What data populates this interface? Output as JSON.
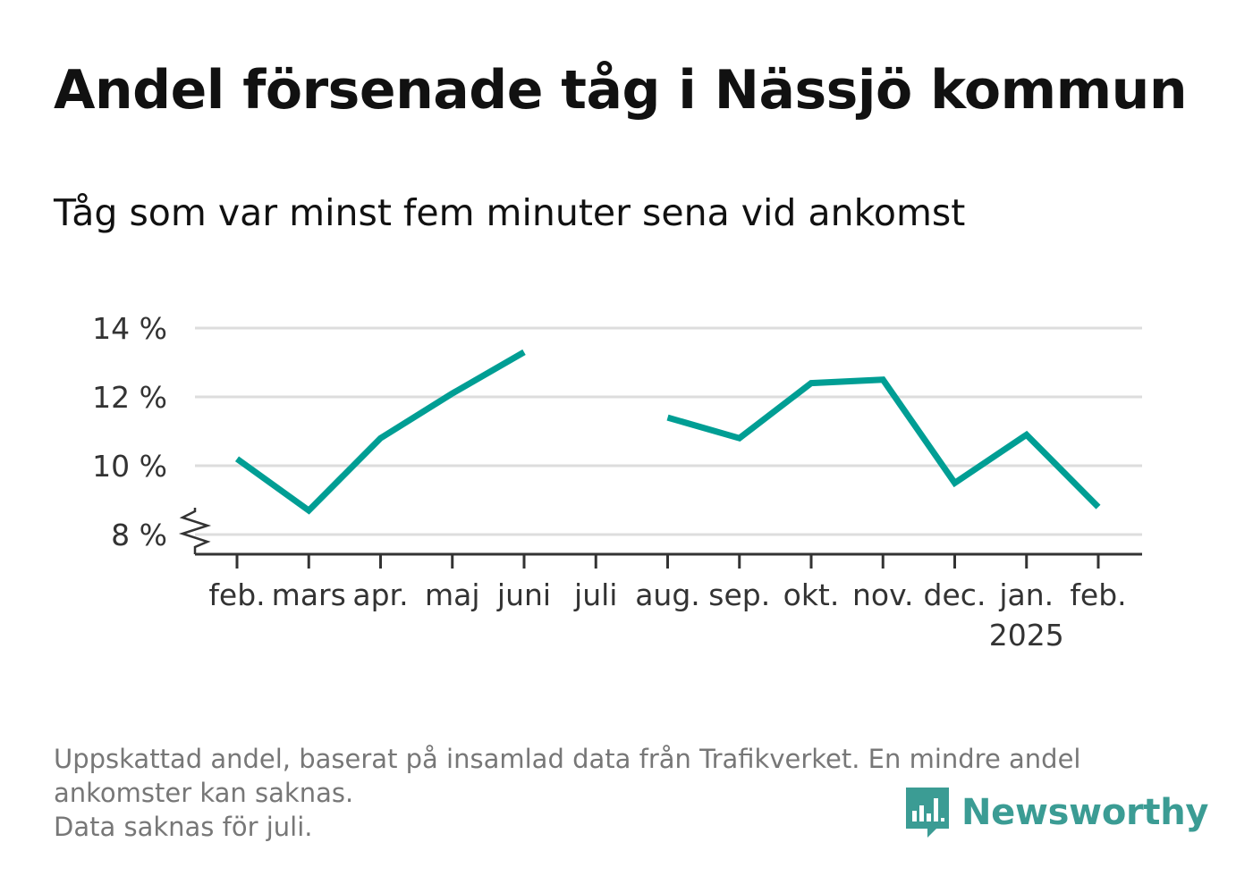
{
  "title": "Andel försenade tåg i Nässjö kommun",
  "subtitle": "Tåg som var minst fem minuter sena vid ankomst",
  "chart_data": {
    "type": "line",
    "categories": [
      "feb.",
      "mars",
      "apr.",
      "maj",
      "juni",
      "juli",
      "aug.",
      "sep.",
      "okt.",
      "nov.",
      "dec.",
      "jan.",
      "feb."
    ],
    "year_labels": [
      "",
      "",
      "",
      "",
      "",
      "",
      "",
      "",
      "",
      "",
      "",
      "2025",
      ""
    ],
    "series": [
      {
        "values": [
          10.2,
          8.7,
          10.8,
          12.1,
          13.3,
          null,
          11.4,
          10.8,
          12.4,
          12.5,
          9.5,
          10.9,
          8.8
        ]
      }
    ],
    "y_ticks": [
      {
        "value": 8,
        "label": "8 %"
      },
      {
        "value": 10,
        "label": "10 %"
      },
      {
        "value": 12,
        "label": "12 %"
      },
      {
        "value": 14,
        "label": "14 %"
      }
    ],
    "ylim": [
      7.4,
      14.3
    ],
    "y_axis_break": true,
    "grid": true,
    "line_color": "#009e94",
    "grid_color": "#dddddd",
    "axis_color": "#333333"
  },
  "footnote": {
    "line1": "Uppskattad andel, baserat på insamlad data från Trafikverket. En mindre andel",
    "line2": "ankomster kan saknas.",
    "line3": "Data saknas för juli."
  },
  "brand": {
    "name": "Newsworthy",
    "icon": "newsworthy-logo-icon",
    "color": "#3b9c94"
  }
}
